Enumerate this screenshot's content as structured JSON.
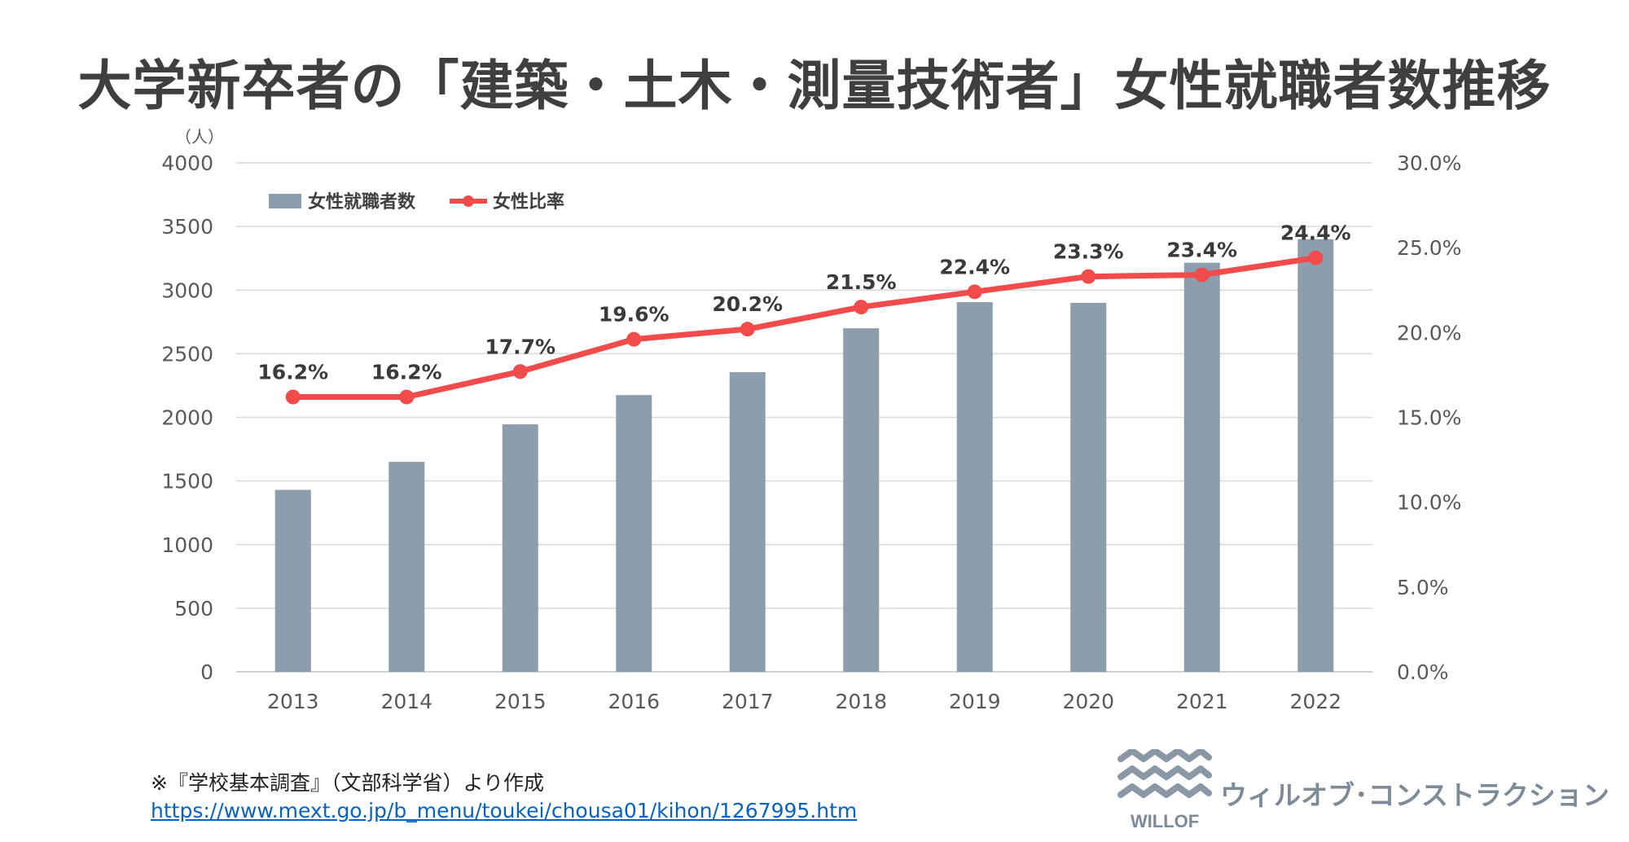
{
  "title": "大学新卒者の「建築・土木・測量技術者」女性就職者数推移",
  "chart_data": {
    "type": "bar+line",
    "categories": [
      "2013",
      "2014",
      "2015",
      "2016",
      "2017",
      "2018",
      "2019",
      "2020",
      "2021",
      "2022"
    ],
    "series": [
      {
        "name": "女性就職者数",
        "type": "bar",
        "axis": "left",
        "color": "#8c9eae",
        "values": [
          1430,
          1650,
          1945,
          2175,
          2355,
          2700,
          2905,
          2900,
          3215,
          3400
        ]
      },
      {
        "name": "女性比率",
        "type": "line",
        "axis": "right",
        "color": "#f24b4b",
        "values": [
          16.2,
          16.2,
          17.7,
          19.6,
          20.2,
          21.5,
          22.4,
          23.3,
          23.4,
          24.4
        ],
        "labels": [
          "16.2%",
          "16.2%",
          "17.7%",
          "19.6%",
          "20.2%",
          "21.5%",
          "22.4%",
          "23.3%",
          "23.4%",
          "24.4%"
        ]
      }
    ],
    "y_left": {
      "unit_label": "（人）",
      "min": 0,
      "max": 4000,
      "ticks": [
        "0",
        "500",
        "1000",
        "1500",
        "2000",
        "2500",
        "3000",
        "3500",
        "4000"
      ]
    },
    "y_right": {
      "min": 0,
      "max": 30,
      "ticks": [
        "0.0%",
        "5.0%",
        "10.0%",
        "15.0%",
        "20.0%",
        "25.0%",
        "30.0%"
      ]
    },
    "legend": {
      "position": "top-left",
      "items": [
        "女性就職者数",
        "女性比率"
      ]
    },
    "grid": true
  },
  "footnote": {
    "source": "※『学校基本調査』（文部科学省）より作成",
    "url": "https://www.mext.go.jp/b_menu/toukei/chousa01/kihon/1267995.htm"
  },
  "brand": {
    "logo_text": "WILLOF",
    "name": "ウィルオブ･コンストラクション"
  }
}
